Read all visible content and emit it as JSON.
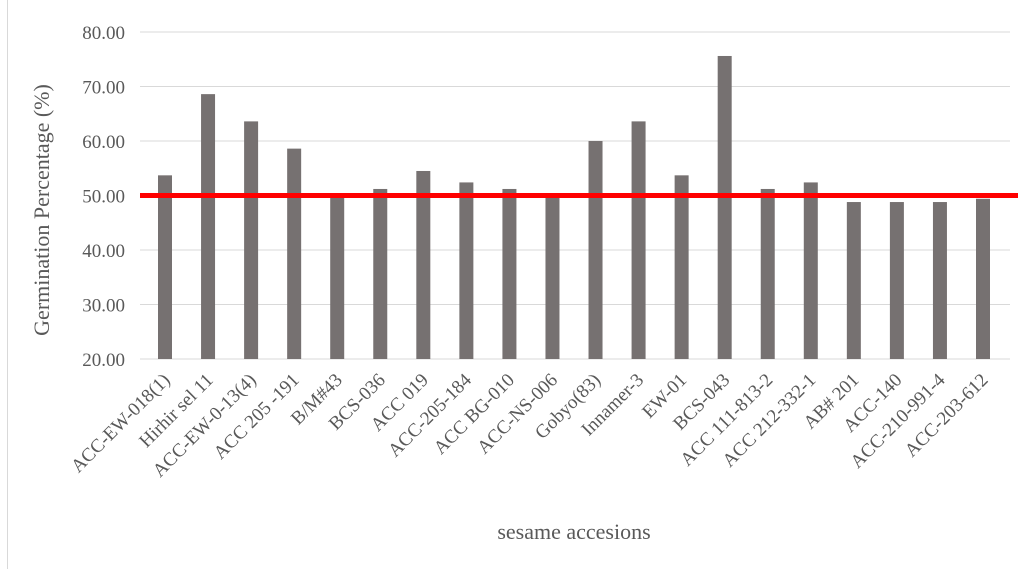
{
  "chart_data": {
    "type": "bar",
    "title": "",
    "xlabel": "sesame accesions",
    "ylabel": "Germination Percentage (%)",
    "ylim": [
      20,
      80
    ],
    "yticks": [
      "20.00",
      "30.00",
      "40.00",
      "50.00",
      "60.00",
      "70.00",
      "80.00"
    ],
    "grid": true,
    "legend": "none",
    "categories": [
      "ACC-EW-018(1)",
      "Hirhir sel 11",
      "ACC-EW-0-13(4)",
      "ACC 205 -191",
      "B/M#43",
      "BCS-036",
      "ACC 019",
      "ACC-205-184",
      "ACC BG-010",
      "ACC-NS-006",
      "Gobyo(83)",
      "Innamer-3",
      "EW-01",
      "BCS-043",
      "ACC 111-813-2",
      "ACC 212-332-1",
      "AB# 201",
      "ACC-140",
      "ACC-210-991-4",
      "ACC-203-612"
    ],
    "series": [
      {
        "values": [
          53.7,
          68.6,
          63.6,
          58.6,
          50.0,
          51.2,
          54.5,
          52.4,
          51.2,
          50.0,
          60.0,
          63.6,
          53.7,
          75.6,
          51.2,
          52.4,
          48.8,
          48.8,
          48.8,
          49.4
        ],
        "color": "#767171"
      }
    ],
    "reference_line": {
      "value": 50,
      "color": "#ff0000"
    }
  }
}
